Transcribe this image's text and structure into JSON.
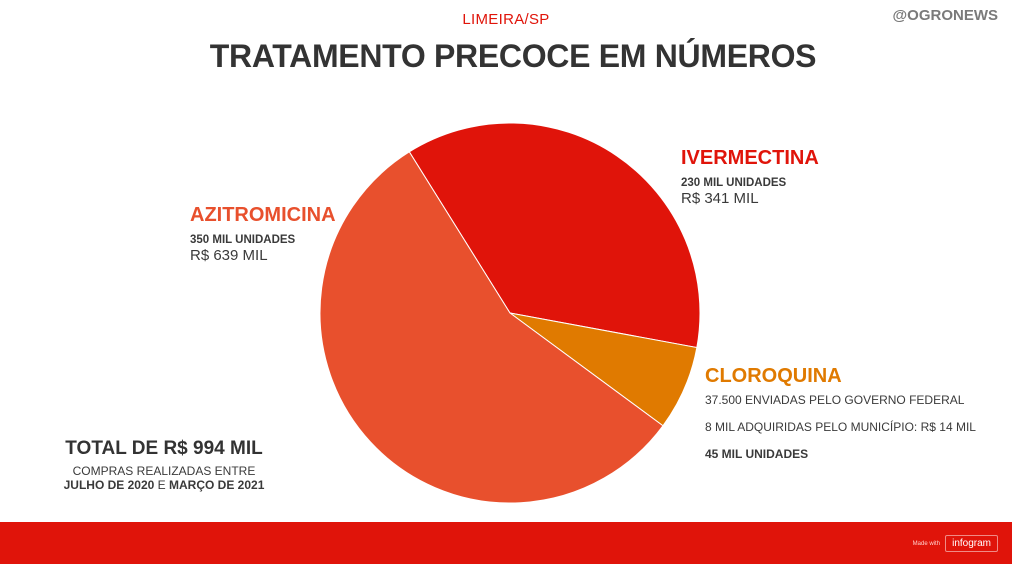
{
  "header": {
    "subtitle": "LIMEIRA/SP",
    "handle": "@OGRONEWS",
    "title": "TRATAMENTO PRECOCE EM NÚMEROS"
  },
  "chart_data": {
    "type": "pie",
    "title": "TRATAMENTO PRECOCE EM NÚMEROS",
    "slices": [
      {
        "name": "IVERMECTINA",
        "value": 230,
        "color": "#e0140a"
      },
      {
        "name": "CLOROQUINA",
        "value": 45,
        "color": "#e07a00"
      },
      {
        "name": "AZITROMICINA",
        "value": 350,
        "color": "#e8502d"
      }
    ],
    "units_label": "MIL UNIDADES",
    "slice_order": "clockwise from top"
  },
  "labels": {
    "ivermectina": {
      "name": "IVERMECTINA",
      "units": "230 MIL UNIDADES",
      "value": "R$ 341 MIL",
      "color": "#e0140a"
    },
    "azitromicina": {
      "name": "AZITROMICINA",
      "units": "350 MIL UNIDADES",
      "value": "R$ 639 MIL",
      "color": "#e8502d"
    },
    "cloroquina": {
      "name": "CLOROQUINA",
      "line1": "37.500 ENVIADAS PELO GOVERNO FEDERAL",
      "line2": "8 MIL ADQUIRIDAS PELO MUNICÍPIO: R$ 14 MIL",
      "line3": "45 MIL UNIDADES",
      "color": "#e07a00"
    }
  },
  "summary": {
    "total": "TOTAL DE R$ 994 MIL",
    "note_line1": "COMPRAS REALIZADAS ENTRE",
    "note_from": "JULHO DE 2020",
    "note_conj": "E",
    "note_to": "MARÇO DE 2021"
  },
  "footer": {
    "made_with": "Made with",
    "brand": "infogram",
    "bg_color": "#e0140a"
  }
}
